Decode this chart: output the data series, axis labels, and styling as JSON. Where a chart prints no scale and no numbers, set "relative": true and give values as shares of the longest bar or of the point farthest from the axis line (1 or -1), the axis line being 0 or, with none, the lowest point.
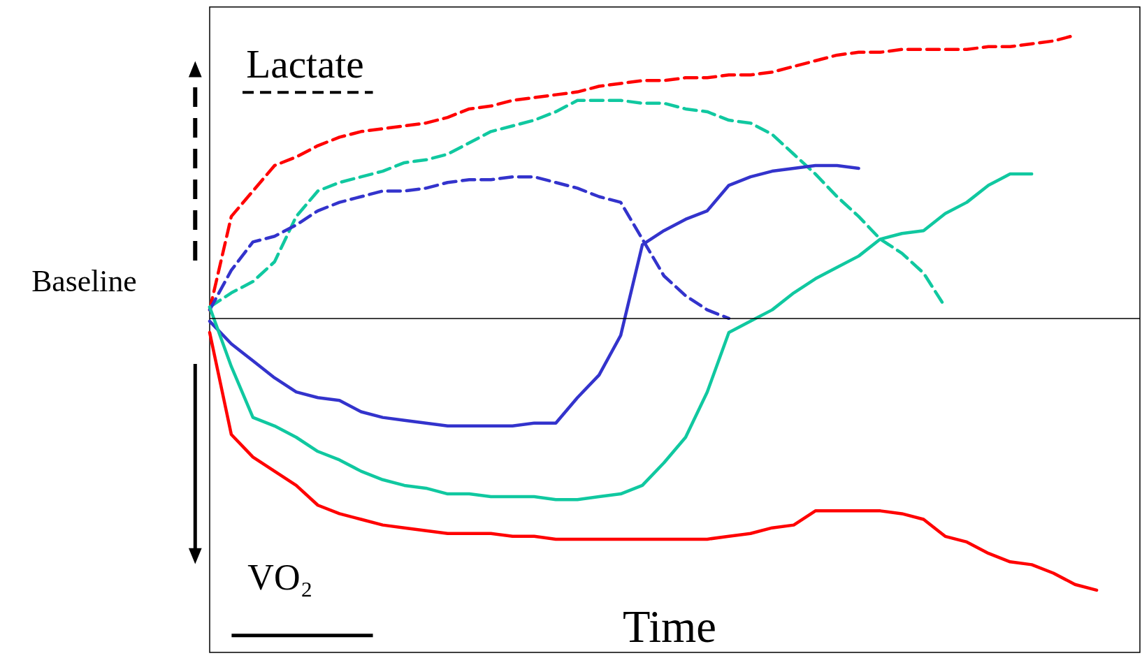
{
  "chart_data": {
    "type": "line",
    "relative": true,
    "xlabel": "Time",
    "annotations": [
      "Lactate",
      "VO₂"
    ],
    "marker": "none",
    "categories": [
      null,
      null,
      null,
      null,
      null,
      null,
      null,
      null,
      null,
      null,
      null,
      null,
      null,
      null,
      null,
      null,
      null,
      null,
      null,
      null,
      null,
      null,
      null,
      null,
      null,
      null,
      null,
      null,
      null,
      null,
      null,
      null,
      null,
      null,
      null,
      null,
      null,
      null,
      null,
      null,
      null,
      null,
      null,
      null
    ],
    "ref_lines": [
      {
        "axis": "y",
        "value": 0,
        "label": "Baseline"
      }
    ],
    "series": [
      {
        "color": "#ff0000",
        "line_style": "dashed",
        "values": [
          0.03,
          0.36,
          0.45,
          0.54,
          0.57,
          0.61,
          0.64,
          0.66,
          0.67,
          0.68,
          0.69,
          0.71,
          0.74,
          0.75,
          0.77,
          0.78,
          0.79,
          0.8,
          0.82,
          0.83,
          0.84,
          0.84,
          0.85,
          0.85,
          0.86,
          0.86,
          0.87,
          0.89,
          0.91,
          0.93,
          0.94,
          0.94,
          0.95,
          0.95,
          0.95,
          0.95,
          0.96,
          0.96,
          0.97,
          0.98,
          1.0,
          null,
          null,
          null
        ]
      },
      {
        "color": "#10c8a0",
        "line_style": "dashed",
        "values": [
          0.04,
          0.09,
          0.13,
          0.2,
          0.36,
          0.45,
          0.48,
          0.5,
          0.52,
          0.55,
          0.56,
          0.58,
          0.62,
          0.66,
          0.68,
          0.7,
          0.73,
          0.77,
          0.77,
          0.77,
          0.76,
          0.76,
          0.74,
          0.73,
          0.7,
          0.69,
          0.65,
          0.58,
          0.51,
          0.43,
          0.36,
          0.28,
          0.23,
          0.16,
          0.04,
          null,
          null,
          null,
          null,
          null,
          null,
          null,
          null,
          null
        ]
      },
      {
        "color": "#3333cc",
        "line_style": "dashed",
        "values": [
          0.03,
          0.17,
          0.27,
          0.29,
          0.33,
          0.38,
          0.41,
          0.43,
          0.45,
          0.45,
          0.46,
          0.48,
          0.49,
          0.49,
          0.5,
          0.5,
          0.48,
          0.46,
          0.43,
          0.41,
          0.28,
          0.15,
          0.08,
          0.03,
          0.0,
          null,
          null,
          null,
          null,
          null,
          null,
          null,
          null,
          null,
          null,
          null,
          null,
          null,
          null,
          null,
          null,
          null,
          null,
          null
        ]
      },
      {
        "color": "#3333cc",
        "line_style": "solid",
        "values": [
          -0.01,
          -0.09,
          -0.15,
          -0.21,
          -0.26,
          -0.28,
          -0.29,
          -0.33,
          -0.35,
          -0.36,
          -0.37,
          -0.38,
          -0.38,
          -0.38,
          -0.38,
          -0.37,
          -0.37,
          -0.28,
          -0.2,
          -0.06,
          0.26,
          0.31,
          0.35,
          0.38,
          0.47,
          0.5,
          0.52,
          0.53,
          0.54,
          0.54,
          0.53,
          null,
          null,
          null,
          null,
          null,
          null,
          null,
          null,
          null,
          null,
          null,
          null,
          null
        ]
      },
      {
        "color": "#10c8a0",
        "line_style": "solid",
        "values": [
          0.04,
          -0.17,
          -0.35,
          -0.38,
          -0.42,
          -0.47,
          -0.5,
          -0.54,
          -0.57,
          -0.59,
          -0.6,
          -0.62,
          -0.62,
          -0.63,
          -0.63,
          -0.63,
          -0.64,
          -0.64,
          -0.63,
          -0.62,
          -0.59,
          -0.51,
          -0.42,
          -0.26,
          -0.05,
          -0.01,
          0.03,
          0.09,
          0.14,
          0.18,
          0.22,
          0.28,
          0.3,
          0.31,
          0.37,
          0.41,
          0.47,
          0.51,
          0.51,
          null,
          null,
          null,
          null,
          null
        ]
      },
      {
        "color": "#ff0000",
        "line_style": "solid",
        "values": [
          -0.05,
          -0.41,
          -0.49,
          -0.54,
          -0.59,
          -0.66,
          -0.69,
          -0.71,
          -0.73,
          -0.74,
          -0.75,
          -0.76,
          -0.76,
          -0.76,
          -0.77,
          -0.77,
          -0.78,
          -0.78,
          -0.78,
          -0.78,
          -0.78,
          -0.78,
          -0.78,
          -0.78,
          -0.77,
          -0.76,
          -0.74,
          -0.73,
          -0.68,
          -0.68,
          -0.68,
          -0.68,
          -0.69,
          -0.71,
          -0.77,
          -0.79,
          -0.83,
          -0.86,
          -0.87,
          -0.9,
          -0.94,
          -0.96,
          null,
          null
        ]
      }
    ]
  }
}
